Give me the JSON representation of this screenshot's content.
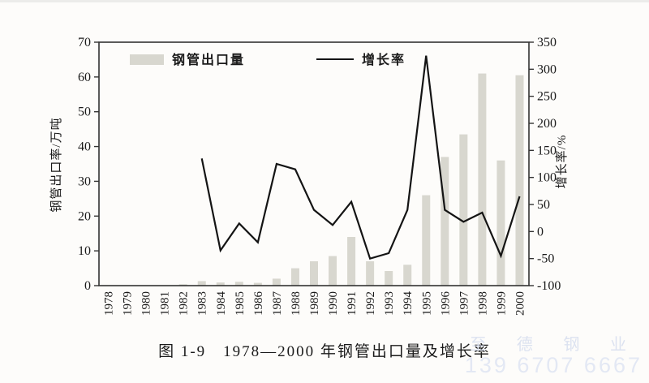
{
  "figure": {
    "caption": "图 1-9　1978—2000 年钢管出口量及增长率"
  },
  "legend": {
    "bar_label": "钢管出口量",
    "line_label": "增长率"
  },
  "watermark": {
    "line1": "至 德 钢 业",
    "line2": "139 6707 6667",
    "color_line1": "#dce2f0",
    "color_line2": "#e3e8f4"
  },
  "chart_data": {
    "type": "combo",
    "title": "图 1-9　1978—2000 年钢管出口量及增长率",
    "categories": [
      "1978",
      "1979",
      "1980",
      "1981",
      "1982",
      "1983",
      "1984",
      "1985",
      "1986",
      "1987",
      "1988",
      "1989",
      "1990",
      "1991",
      "1992",
      "1993",
      "1994",
      "1995",
      "1996",
      "1997",
      "1998",
      "1999",
      "2000"
    ],
    "series": [
      {
        "name": "钢管出口量",
        "type": "bar",
        "axis": "left",
        "color": "#d8d7cf",
        "values": [
          0,
          0,
          0,
          0,
          0.4,
          1.3,
          0.9,
          1.1,
          0.8,
          2,
          5,
          7,
          8.5,
          14,
          7,
          4.2,
          6,
          26,
          37,
          43.5,
          61,
          36,
          60.5
        ]
      },
      {
        "name": "增长率",
        "type": "line",
        "axis": "right",
        "color": "#141414",
        "values": [
          null,
          null,
          null,
          null,
          null,
          135,
          -35,
          15,
          -20,
          125,
          115,
          40,
          12,
          55,
          -50,
          -40,
          40,
          325,
          40,
          18,
          35,
          -45,
          65
        ]
      }
    ],
    "left_axis": {
      "label": "钢管出口率/万吨",
      "min": 0,
      "max": 70,
      "step": 10
    },
    "right_axis": {
      "label": "增长率/%",
      "min": -100,
      "max": 350,
      "step": 50
    },
    "xlabel": "",
    "grid": false,
    "legend_position": "top-inside",
    "frame": true,
    "x_tick_rotation": -90
  }
}
